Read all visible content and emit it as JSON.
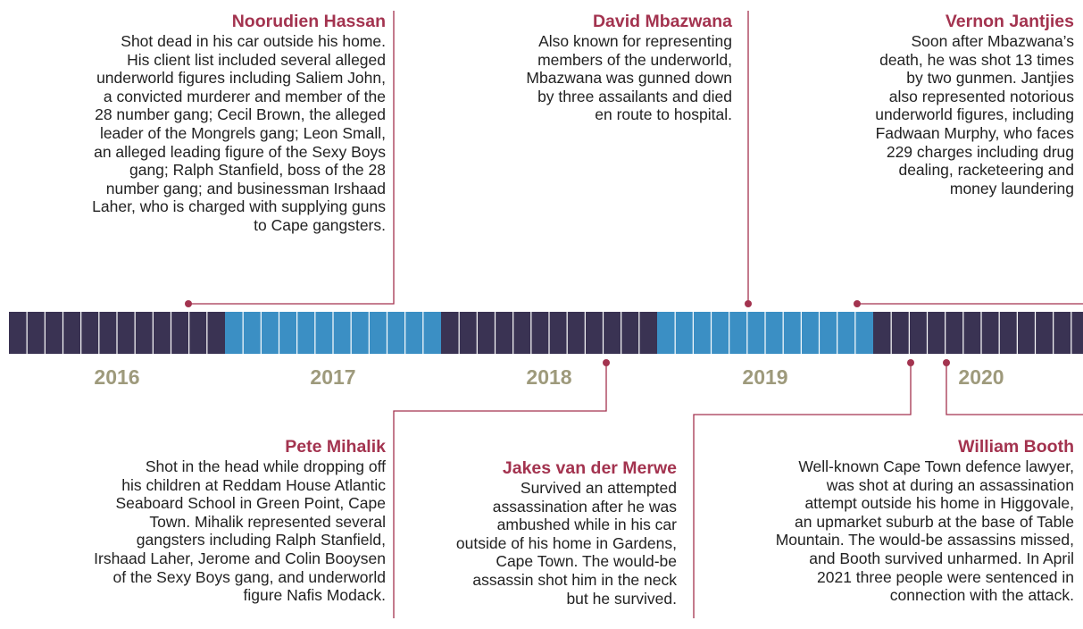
{
  "years": [
    "2016",
    "2017",
    "2018",
    "2019",
    "2020"
  ],
  "events": [
    {
      "name": "Noorudien Hassan",
      "lines": [
        "Shot dead in his car outside his home.",
        "His client list included several alleged",
        "underworld figures including Saliem John,",
        "a convicted murderer and member of the",
        "28 number gang; Cecil Brown, the alleged",
        "leader of the Mongrels gang; Leon Small,",
        "an alleged leading figure of the Sexy Boys",
        "gang; Ralph Stanfield, boss of the 28",
        "number gang; and businessman Irshaad",
        "Laher, who is charged with supplying guns",
        "to Cape gangsters."
      ]
    },
    {
      "name": "David Mbazwana",
      "lines": [
        "Also known for representing",
        "members of the underworld,",
        "Mbazwana was gunned down",
        "by three assailants and died",
        "en route to hospital."
      ]
    },
    {
      "name": "Vernon Jantjies",
      "lines": [
        "Soon after Mbazwana’s",
        "death, he was shot 13 times",
        "by two gunmen. Jantjies",
        "also represented notorious",
        "underworld figures, including",
        "Fadwaan Murphy, who faces",
        "229 charges including drug",
        "dealing, racketeering and",
        "money laundering"
      ]
    },
    {
      "name": "Pete Mihalik",
      "lines": [
        "Shot in the head while dropping off",
        "his children at Reddam House Atlantic",
        "Seaboard School in Green Point, Cape",
        "Town. Mihalik represented several",
        "gangsters including Ralph Stanfield,",
        "Irshaad Laher, Jerome and Colin Booysen",
        "of the Sexy Boys gang, and underworld",
        "figure Nafis Modack."
      ]
    },
    {
      "name": "Jakes van der Merwe",
      "lines": [
        "Survived an attempted",
        "assassination after he was",
        "ambushed while in his car",
        "outside of his home in Gardens,",
        "Cape Town. The would-be",
        "assassin shot him in the neck",
        "but he survived."
      ]
    },
    {
      "name": "William Booth",
      "lines": [
        "Well-known Cape Town defence lawyer,",
        "was shot at during an assassination",
        "attempt outside his home in Higgovale,",
        "an upmarket suburb at the base of Table",
        "Mountain. The would-be assassins missed,",
        "and Booth survived unharmed. In April",
        "2021 three people were sentenced in",
        "connection with the attack."
      ]
    }
  ]
}
